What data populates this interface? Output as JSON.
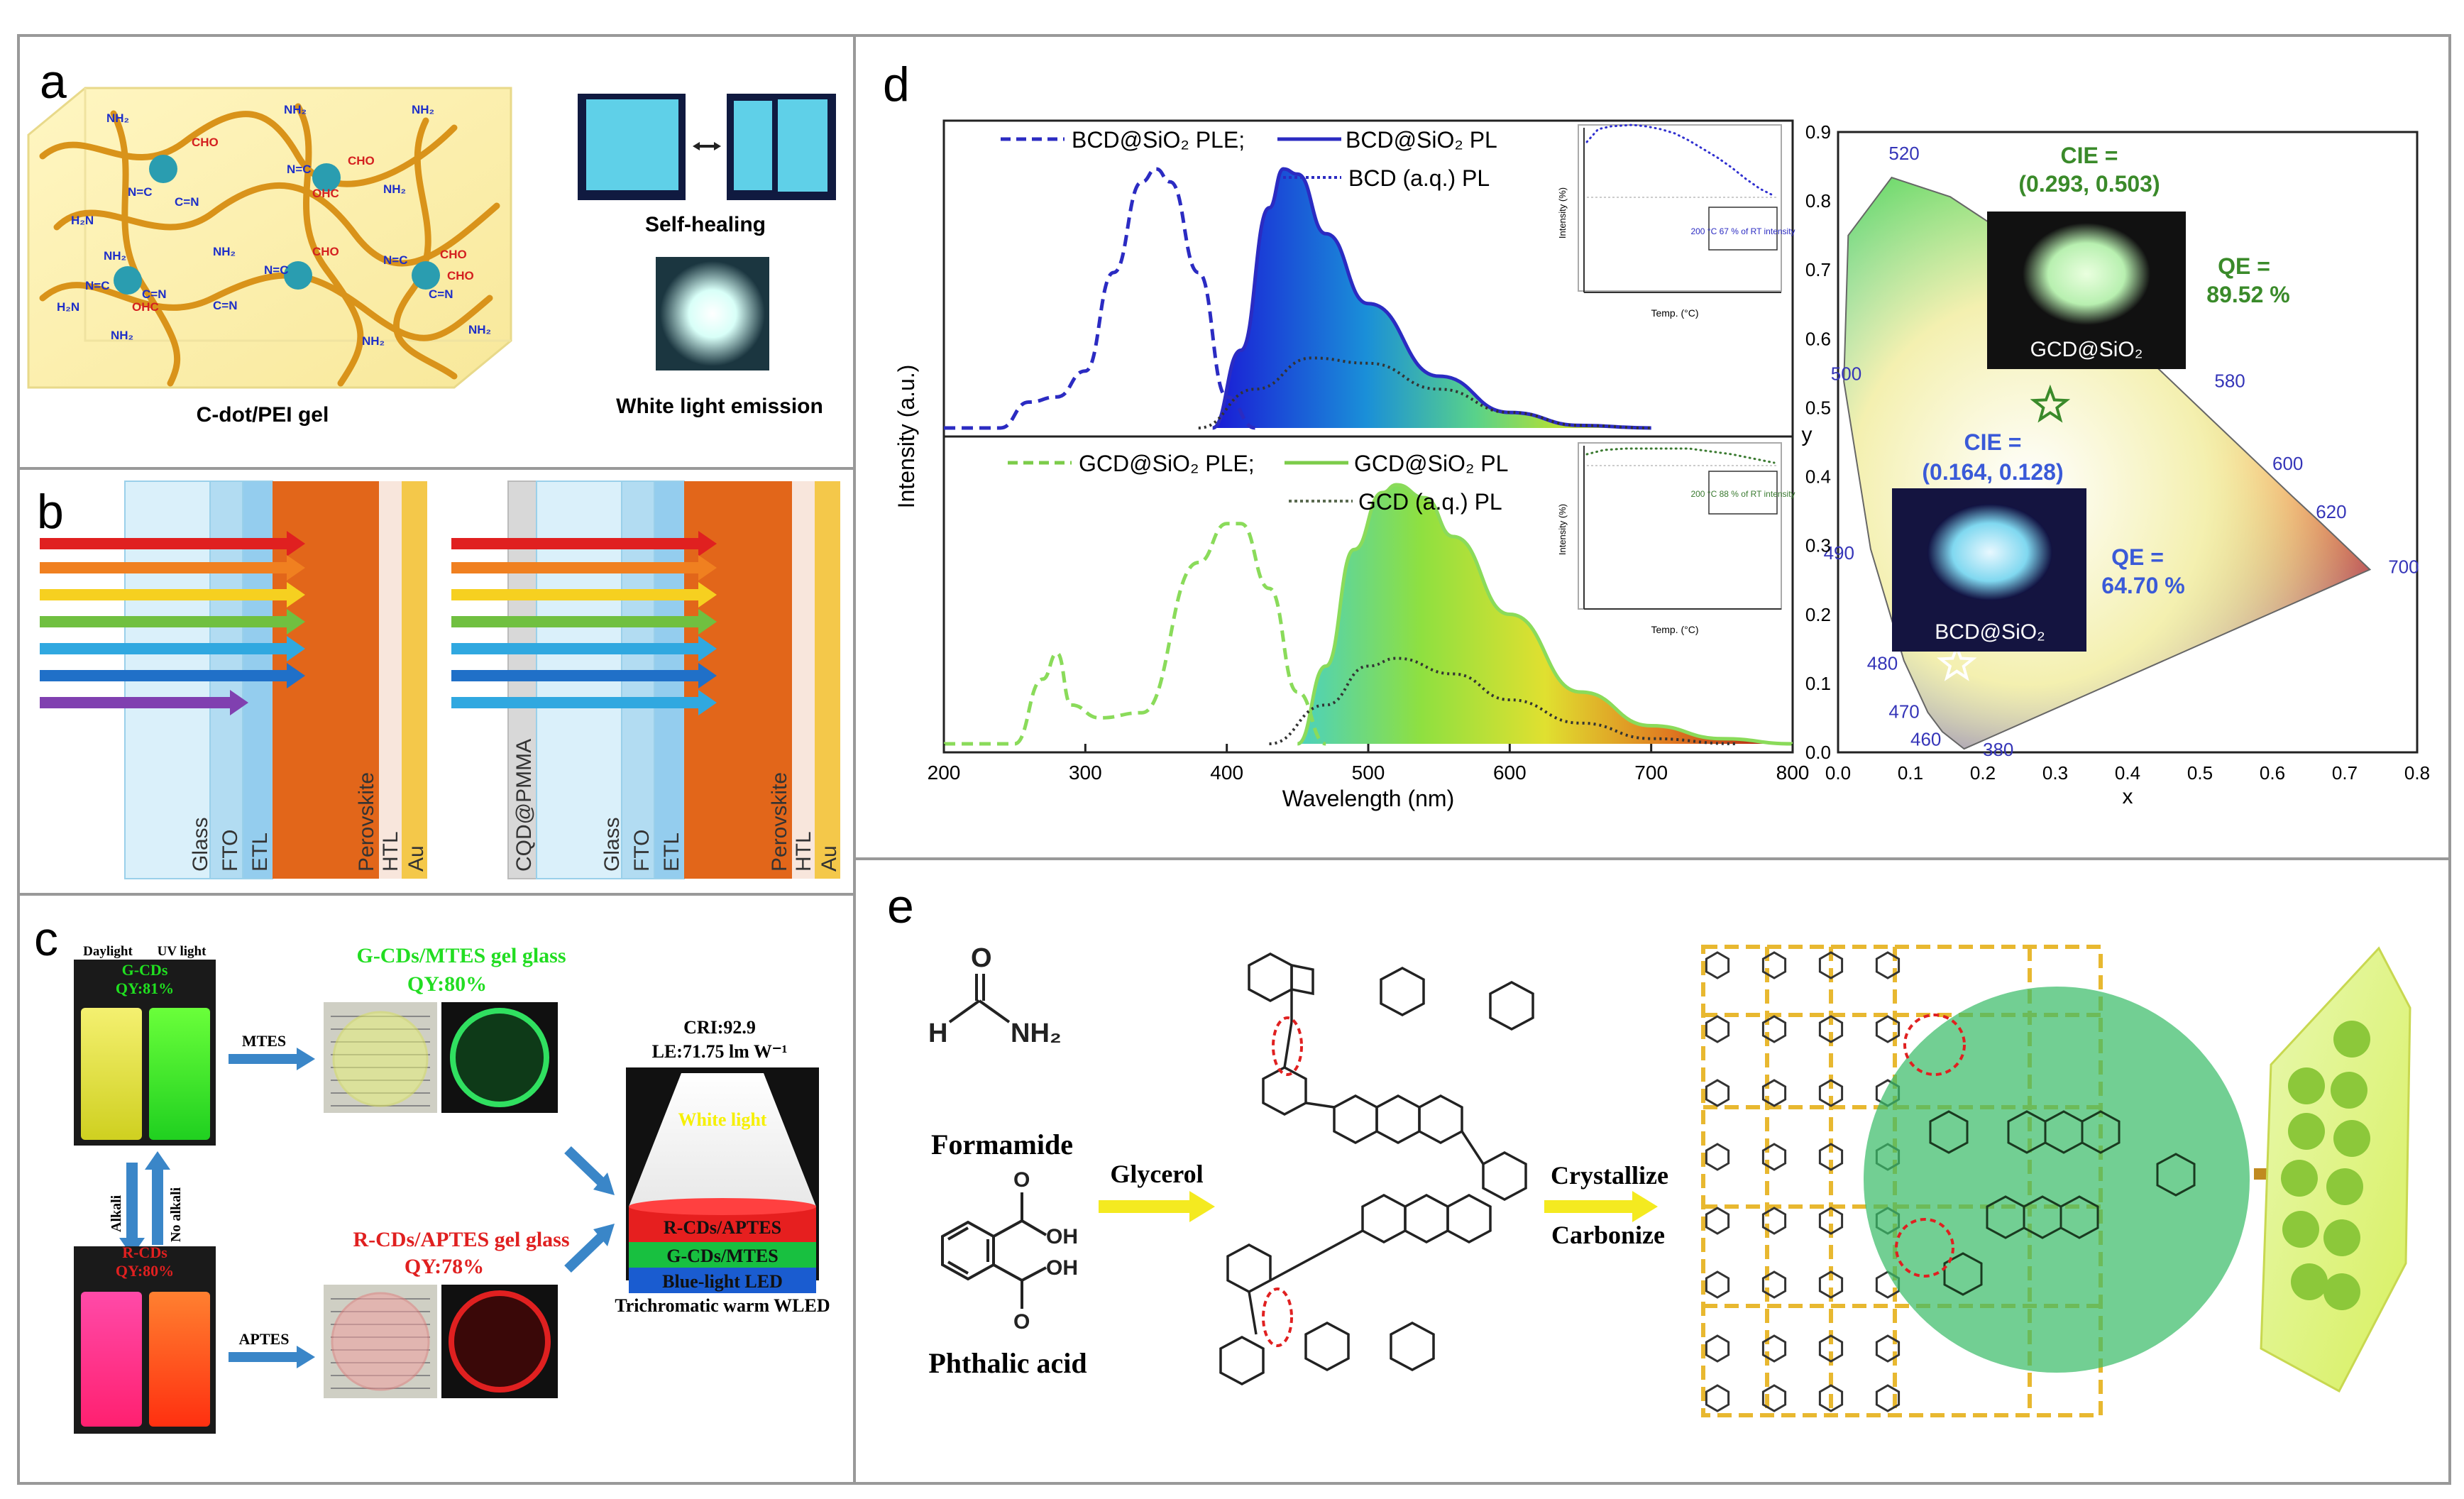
{
  "panels": {
    "a": {
      "letter": "a",
      "gel_caption": "C-dot/PEI gel",
      "self_healing_caption": "Self-healing",
      "white_light_caption": "White light emission",
      "group_labels": [
        "NH",
        "CHO",
        "OHC",
        "N=C",
        "C=N",
        "H2N",
        "N"
      ]
    },
    "b": {
      "letter": "b",
      "left_layers": [
        "Glass",
        "FTO",
        "ETL",
        "Perovskite",
        "HTL",
        "Au"
      ],
      "right_layers": [
        "CQD@PMMA",
        "Glass",
        "FTO",
        "ETL",
        "Perovskite",
        "HTL",
        "Au"
      ]
    },
    "c": {
      "letter": "c",
      "daylight": "Daylight",
      "uv_light": "UV light",
      "gcds": "G-CDs",
      "gcds_qy": "QY:81%",
      "alkali": "Alkali",
      "no_alkali": "No alkali",
      "rcds": "R-CDs",
      "rcds_qy": "QY:80%",
      "mtes": "MTES",
      "aptes": "APTES",
      "g_glass_title": "G-CDs/MTES gel glass",
      "g_glass_qy": "QY:80%",
      "r_glass_title": "R-CDs/APTES gel glass",
      "r_glass_qy": "QY:78%",
      "cri": "CRI:92.9",
      "le": "LE:71.75 lm W⁻¹",
      "white_light": "White light",
      "layer_red": "R-CDs/APTES",
      "layer_green": "G-CDs/MTES",
      "layer_blue": "Blue-light LED",
      "wled_caption": "Trichromatic warm WLED"
    },
    "d": {
      "letter": "d",
      "colors": {
        "blue": "#2b2bc2",
        "green": "#7ccc4a",
        "axis": "#222222"
      },
      "spectra": {
        "xlabel": "Wavelength (nm)",
        "ylabel": "Intensity (a.u.)",
        "x_ticks": [
          "200",
          "300",
          "400",
          "500",
          "600",
          "700",
          "800"
        ],
        "legend_top": [
          "BCD@SiO₂ PLE;",
          "BCD@SiO₂ PL",
          "BCD (a.q.) PL"
        ],
        "legend_bottom": [
          "GCD@SiO₂ PLE;",
          "GCD@SiO₂ PL",
          "GCD (a.q.) PL"
        ],
        "inset_top_note": "200 °C 67 % of RT intensity",
        "inset_bottom_note": "200 °C 88 % of RT intensity",
        "inset_xlabel": "Temp. (°C)",
        "inset_ylabel": "Intensity (%)"
      },
      "cie": {
        "xlabel": "x",
        "ylabel": "y",
        "x_ticks": [
          "0.0",
          "0.1",
          "0.2",
          "0.3",
          "0.4",
          "0.5",
          "0.6",
          "0.7",
          "0.8"
        ],
        "y_ticks": [
          "0.0",
          "0.1",
          "0.2",
          "0.3",
          "0.4",
          "0.5",
          "0.6",
          "0.7",
          "0.8",
          "0.9"
        ],
        "wavelength_labels": [
          "520",
          "500",
          "490",
          "480",
          "470",
          "460",
          "380",
          "580",
          "600",
          "620",
          "700"
        ],
        "gcd_cie_title": "CIE =",
        "gcd_cie_value": "(0.293, 0.503)",
        "gcd_qe_title": "QE =",
        "gcd_qe_value": "89.52 %",
        "gcd_sample": "GCD@SiO₂",
        "bcd_cie_title": "CIE =",
        "bcd_cie_value": "(0.164, 0.128)",
        "bcd_qe_title": "QE =",
        "bcd_qe_value": "64.70 %",
        "bcd_sample": "BCD@SiO₂"
      }
    },
    "e": {
      "letter": "e",
      "formamide": "Formamide",
      "phthalic": "Phthalic acid",
      "glycerol": "Glycerol",
      "crystallize": "Crystallize",
      "carbonize": "Carbonize"
    }
  },
  "chart_data": [
    {
      "type": "line",
      "title": "",
      "xlabel": "Wavelength (nm)",
      "ylabel": "Intensity (a.u.)",
      "xlim": [
        200,
        800
      ],
      "series": [
        {
          "name": "BCD@SiO₂ PLE",
          "x": [
            200,
            240,
            260,
            280,
            300,
            320,
            340,
            350,
            360,
            380,
            400,
            420
          ],
          "y": [
            0.0,
            0.0,
            0.1,
            0.12,
            0.22,
            0.6,
            0.95,
            1.0,
            0.95,
            0.6,
            0.12,
            0.0
          ]
        },
        {
          "name": "BCD@SiO₂ PL",
          "x": [
            390,
            410,
            430,
            440,
            450,
            470,
            500,
            550,
            600,
            650,
            700
          ],
          "y": [
            0.0,
            0.3,
            0.85,
            1.0,
            0.98,
            0.75,
            0.48,
            0.2,
            0.06,
            0.01,
            0.0
          ]
        },
        {
          "name": "BCD (a.q.) PL",
          "x": [
            380,
            420,
            460,
            500,
            550,
            600,
            650,
            700
          ],
          "y": [
            0.0,
            0.15,
            0.27,
            0.25,
            0.15,
            0.06,
            0.01,
            0.0
          ]
        },
        {
          "name": "GCD@SiO₂ PLE",
          "x": [
            200,
            250,
            270,
            280,
            290,
            310,
            340,
            380,
            400,
            410,
            430,
            450,
            470
          ],
          "y": [
            0.0,
            0.0,
            0.25,
            0.35,
            0.15,
            0.1,
            0.12,
            0.7,
            0.85,
            0.85,
            0.6,
            0.2,
            0.0
          ]
        },
        {
          "name": "GCD@SiO₂ PL",
          "x": [
            450,
            470,
            490,
            510,
            520,
            540,
            560,
            600,
            650,
            700,
            750,
            800
          ],
          "y": [
            0.0,
            0.3,
            0.75,
            0.97,
            1.0,
            0.95,
            0.8,
            0.5,
            0.2,
            0.07,
            0.02,
            0.0
          ]
        },
        {
          "name": "GCD (a.q.) PL",
          "x": [
            430,
            470,
            500,
            520,
            560,
            600,
            650,
            700,
            760
          ],
          "y": [
            0.0,
            0.15,
            0.3,
            0.33,
            0.27,
            0.17,
            0.08,
            0.02,
            0.0
          ]
        }
      ]
    },
    {
      "type": "scatter",
      "title": "",
      "xlabel": "x",
      "ylabel": "y",
      "xlim": [
        0.0,
        0.8
      ],
      "ylim": [
        0.0,
        0.9
      ],
      "series": [
        {
          "name": "GCD@SiO₂",
          "x": [
            0.293
          ],
          "y": [
            0.503
          ]
        },
        {
          "name": "BCD@SiO₂",
          "x": [
            0.164
          ],
          "y": [
            0.128
          ]
        }
      ]
    }
  ]
}
